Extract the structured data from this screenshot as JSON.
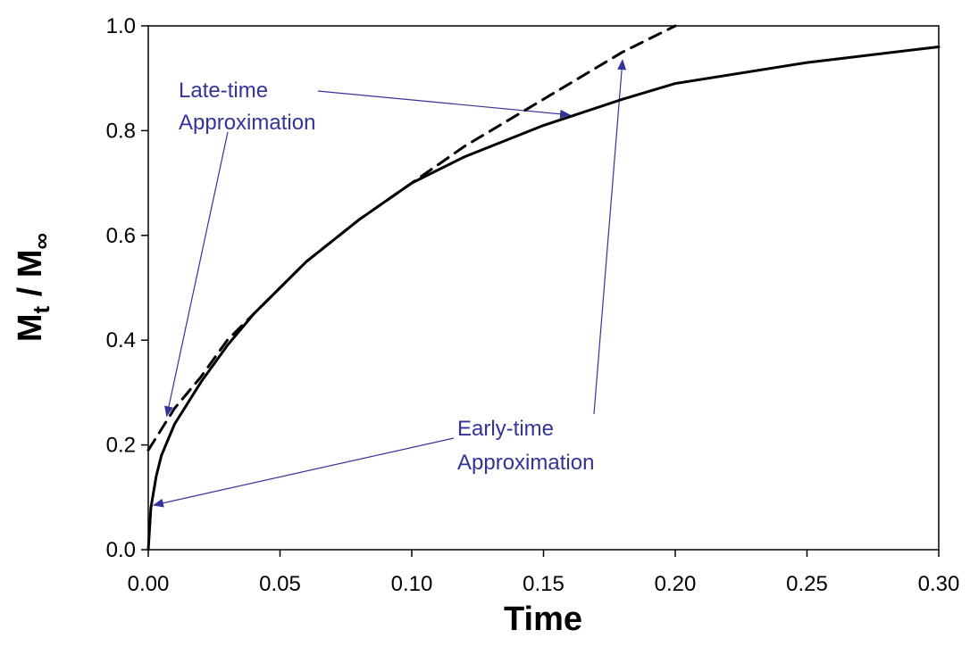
{
  "chart_data": {
    "type": "line",
    "title": "",
    "xlabel": "Time",
    "ylabel": {
      "main_1": "M",
      "sub_1": "t",
      "sep": " / ",
      "main_2": "M",
      "sub_2": "∞"
    },
    "xlim": [
      0,
      0.3
    ],
    "ylim": [
      0,
      1.0
    ],
    "xticks": [
      "0.00",
      "0.05",
      "0.10",
      "0.15",
      "0.20",
      "0.25",
      "0.30"
    ],
    "xtick_values": [
      0,
      0.05,
      0.1,
      0.15,
      0.2,
      0.25,
      0.3
    ],
    "yticks": [
      "0.0",
      "0.2",
      "0.4",
      "0.6",
      "0.8",
      "1.0"
    ],
    "ytick_values": [
      0,
      0.2,
      0.4,
      0.6,
      0.8,
      1.0
    ],
    "grid": false,
    "legend": "none",
    "series": [
      {
        "style": "solid",
        "color": "#000000",
        "x": [
          0,
          0.001,
          0.003,
          0.005,
          0.01,
          0.02,
          0.03,
          0.04,
          0.05,
          0.06,
          0.08,
          0.1,
          0.12,
          0.15,
          0.18,
          0.2,
          0.25,
          0.3
        ],
        "y": [
          0,
          0.08,
          0.14,
          0.18,
          0.24,
          0.32,
          0.39,
          0.45,
          0.5,
          0.55,
          0.63,
          0.7,
          0.75,
          0.81,
          0.86,
          0.89,
          0.93,
          0.96
        ]
      },
      {
        "style": "dashed",
        "color": "#000000",
        "x": [
          0,
          0.01,
          0.02,
          0.03,
          0.04,
          0.05,
          0.06,
          0.08,
          0.1,
          0.12,
          0.14,
          0.16,
          0.18,
          0.2
        ],
        "y": [
          0.19,
          0.27,
          0.33,
          0.4,
          0.45,
          0.5,
          0.55,
          0.63,
          0.7,
          0.77,
          0.83,
          0.89,
          0.95,
          1.0
        ]
      }
    ],
    "annotations": [
      {
        "lines": [
          "Late-time",
          "Approximation"
        ],
        "color": "#333399",
        "arrows_to": [
          {
            "x": 0.007,
            "y": 0.255
          },
          {
            "x": 0.16,
            "y": 0.83
          }
        ]
      },
      {
        "lines": [
          "Early-time",
          "Approximation"
        ],
        "color": "#333399",
        "arrows_to": [
          {
            "x": 0.002,
            "y": 0.085
          },
          {
            "x": 0.18,
            "y": 0.935
          }
        ]
      }
    ]
  }
}
